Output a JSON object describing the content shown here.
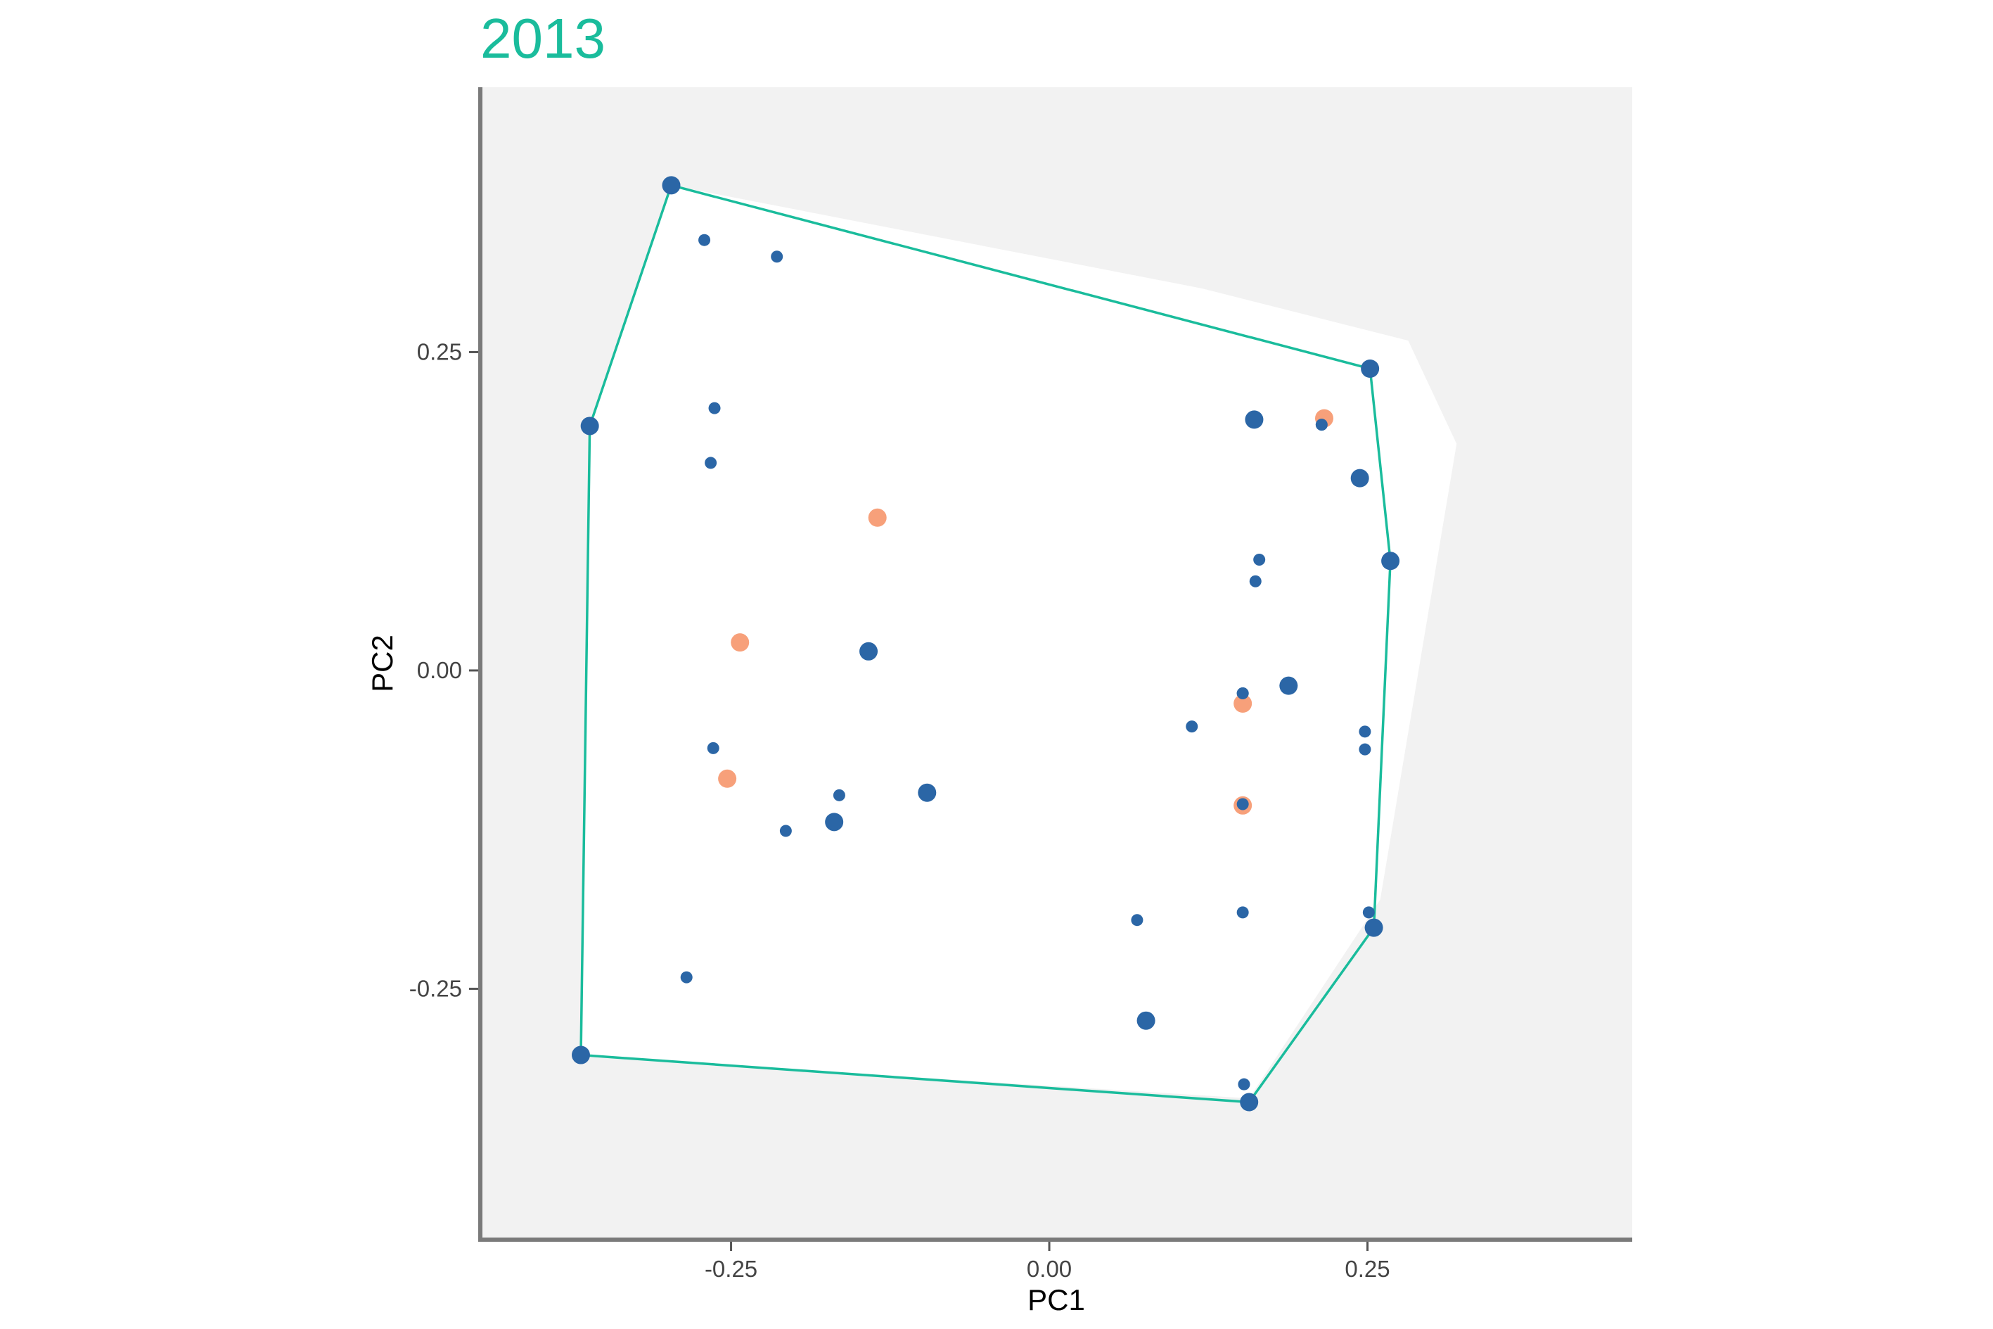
{
  "chart_data": {
    "type": "scatter",
    "title": "2013",
    "xlabel": "PC1",
    "ylabel": "PC2",
    "xlim": [
      -0.447,
      0.458
    ],
    "ylim": [
      -0.447,
      0.458
    ],
    "x_ticks": [
      "-0.25",
      "0.00",
      "0.25"
    ],
    "y_ticks": [
      "-0.25",
      "0.00",
      "0.25"
    ],
    "x_tick_values": [
      -0.25,
      0.0,
      0.25
    ],
    "y_tick_values": [
      -0.25,
      0.0,
      0.25
    ],
    "grid": false,
    "colors": {
      "title": "#1abc9c",
      "panel_background": "#f2f2f2",
      "region_fill": "#ffffff",
      "hull_line": "#1abc9c",
      "point_blue": "#2b66a6",
      "point_orange": "#f7a07a",
      "axis": "#7a7a7a"
    },
    "background_region": [
      [
        -0.297,
        0.381
      ],
      [
        0.12,
        0.3
      ],
      [
        0.282,
        0.259
      ],
      [
        0.32,
        0.178
      ],
      [
        0.26,
        -0.18
      ],
      [
        0.157,
        -0.336
      ],
      [
        -0.367,
        -0.303
      ],
      [
        -0.36,
        0.192
      ],
      [
        -0.297,
        0.381
      ]
    ],
    "hull": [
      [
        -0.297,
        0.381
      ],
      [
        0.252,
        0.237
      ],
      [
        0.268,
        0.086
      ],
      [
        0.255,
        -0.202
      ],
      [
        0.157,
        -0.339
      ],
      [
        -0.368,
        -0.302
      ],
      [
        -0.361,
        0.192
      ],
      [
        -0.297,
        0.381
      ]
    ],
    "series": [
      {
        "name": "large-blue",
        "color": "#2b66a6",
        "size": "large",
        "points": [
          [
            -0.297,
            0.381
          ],
          [
            -0.361,
            0.192
          ],
          [
            0.252,
            0.237
          ],
          [
            0.161,
            0.197
          ],
          [
            0.244,
            0.151
          ],
          [
            0.268,
            0.086
          ],
          [
            -0.142,
            0.015
          ],
          [
            0.188,
            -0.012
          ],
          [
            -0.096,
            -0.096
          ],
          [
            -0.169,
            -0.119
          ],
          [
            0.255,
            -0.202
          ],
          [
            0.076,
            -0.275
          ],
          [
            -0.368,
            -0.302
          ],
          [
            0.157,
            -0.339
          ]
        ]
      },
      {
        "name": "small-blue",
        "color": "#2b66a6",
        "size": "small",
        "points": [
          [
            -0.271,
            0.338
          ],
          [
            -0.214,
            0.325
          ],
          [
            -0.263,
            0.206
          ],
          [
            -0.266,
            0.163
          ],
          [
            0.214,
            0.193
          ],
          [
            0.165,
            0.087
          ],
          [
            0.162,
            0.07
          ],
          [
            0.152,
            -0.018
          ],
          [
            0.112,
            -0.044
          ],
          [
            0.248,
            -0.048
          ],
          [
            0.248,
            -0.062
          ],
          [
            -0.264,
            -0.061
          ],
          [
            -0.165,
            -0.098
          ],
          [
            -0.207,
            -0.126
          ],
          [
            0.152,
            -0.105
          ],
          [
            0.069,
            -0.196
          ],
          [
            0.152,
            -0.19
          ],
          [
            0.251,
            -0.19
          ],
          [
            -0.285,
            -0.241
          ],
          [
            0.153,
            -0.325
          ]
        ]
      },
      {
        "name": "orange",
        "color": "#f7a07a",
        "size": "large",
        "points": [
          [
            0.216,
            0.198
          ],
          [
            -0.135,
            0.12
          ],
          [
            -0.243,
            0.022
          ],
          [
            -0.253,
            -0.085
          ],
          [
            0.152,
            -0.026
          ],
          [
            0.152,
            -0.106
          ]
        ]
      },
      {
        "name": "small-blue-overlay",
        "color": "#2b66a6",
        "size": "small",
        "points": [
          [
            0.214,
            0.193
          ],
          [
            0.152,
            -0.018
          ],
          [
            0.152,
            -0.105
          ]
        ]
      }
    ]
  }
}
